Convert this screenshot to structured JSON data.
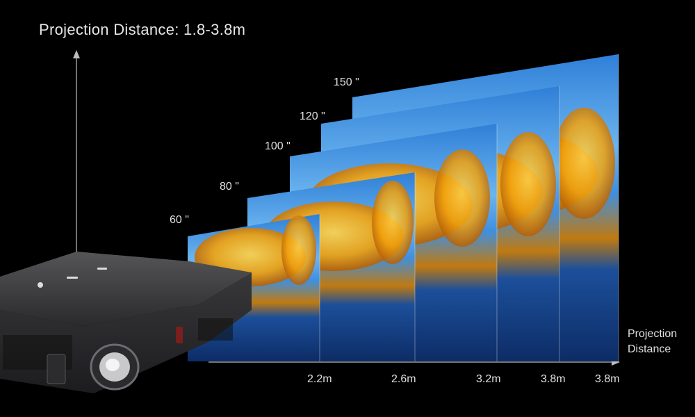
{
  "heading": "Projection Distance: 1.8-3.8m",
  "screens": [
    {
      "size": "60 \"",
      "distance": "2.2m"
    },
    {
      "size": "80 \"",
      "distance": "2.6m"
    },
    {
      "size": "100 \"",
      "distance": "3.2m"
    },
    {
      "size": "120 \"",
      "distance": "3.8m"
    },
    {
      "size": "150 \"",
      "distance": "3.8m"
    }
  ],
  "x_axis_label": [
    "Projection",
    "Distance"
  ],
  "colors": {
    "background": "#000000",
    "sky": "#3f8fe0",
    "foliage": "#f2a20c",
    "water": "#1c4f9a",
    "projector_body": "#3a3a3c"
  },
  "icons": [
    "up-arrow-icon",
    "right-arrow-icon"
  ]
}
